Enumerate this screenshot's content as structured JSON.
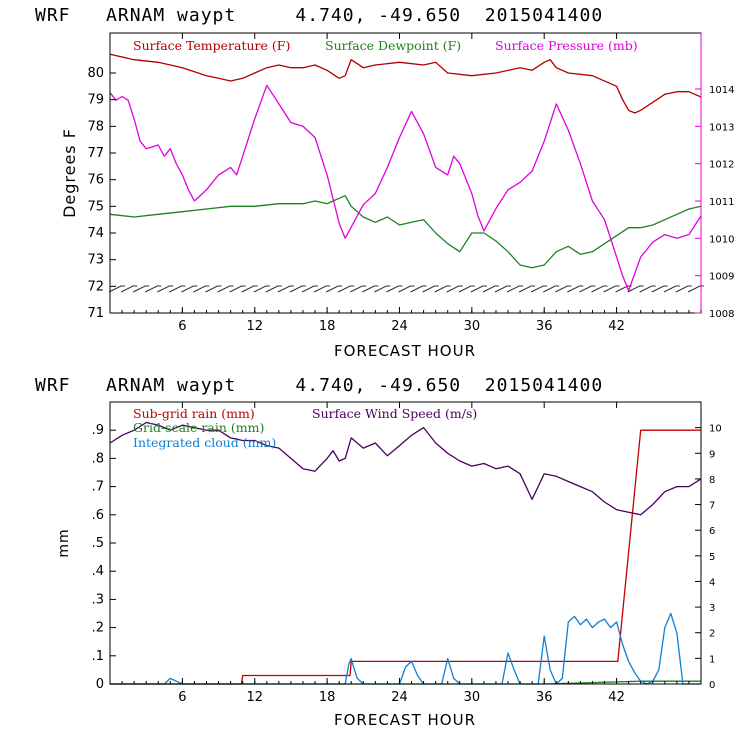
{
  "chart_data": [
    {
      "type": "line",
      "title": "WRF   ARNAM waypt     4.740, -49.650  2015041400",
      "xlabel": "FORECAST HOUR",
      "ylabel": "Degrees F",
      "x_ticks": [
        6,
        12,
        18,
        24,
        30,
        36,
        42
      ],
      "xlim": [
        0,
        49
      ],
      "ylim": [
        71,
        81.5
      ],
      "y_ticks": [
        71,
        72,
        73,
        74,
        75,
        76,
        77,
        78,
        79,
        80
      ],
      "y2lim": [
        1008,
        1015.5
      ],
      "y2_ticks": [
        1008,
        1009,
        1010,
        1011,
        1012,
        1013,
        1014
      ],
      "legend": [
        "Surface Temperature (F)",
        "Surface Dewpoint (F)",
        "Surface Pressure (mb)"
      ],
      "colors": {
        "temperature": "#b00000",
        "dewpoint": "#208020",
        "pressure": "#e000e0",
        "wind_barbs": "#303030"
      },
      "series": [
        {
          "name": "Surface Temperature (F)",
          "axis": "left",
          "x": [
            0,
            2,
            4,
            6,
            8,
            9,
            10,
            11,
            12,
            13,
            14,
            15,
            16,
            17,
            18,
            19,
            19.5,
            20,
            21,
            22,
            24,
            26,
            27,
            28,
            30,
            32,
            34,
            35,
            36,
            36.5,
            37,
            38,
            40,
            42,
            42.5,
            43,
            43.5,
            44,
            45,
            46,
            47,
            48,
            49
          ],
          "y": [
            80.7,
            80.5,
            80.4,
            80.2,
            79.9,
            79.8,
            79.7,
            79.8,
            80.0,
            80.2,
            80.3,
            80.2,
            80.2,
            80.3,
            80.1,
            79.8,
            79.9,
            80.5,
            80.2,
            80.3,
            80.4,
            80.3,
            80.4,
            80.0,
            79.9,
            80.0,
            80.2,
            80.1,
            80.4,
            80.5,
            80.2,
            80.0,
            79.9,
            79.5,
            79.0,
            78.6,
            78.5,
            78.6,
            78.9,
            79.2,
            79.3,
            79.3,
            79.1
          ]
        },
        {
          "name": "Surface Dewpoint (F)",
          "axis": "left",
          "x": [
            0,
            2,
            4,
            6,
            8,
            10,
            12,
            14,
            16,
            17,
            18,
            18.5,
            19,
            19.5,
            20,
            21,
            22,
            23,
            24,
            25,
            26,
            27,
            28,
            29,
            30,
            31,
            32,
            33,
            34,
            35,
            36,
            37,
            38,
            39,
            40,
            41,
            42,
            43,
            44,
            45,
            46,
            47,
            48,
            49
          ],
          "y": [
            74.7,
            74.6,
            74.7,
            74.8,
            74.9,
            75.0,
            75.0,
            75.1,
            75.1,
            75.2,
            75.1,
            75.2,
            75.3,
            75.4,
            75.0,
            74.6,
            74.4,
            74.6,
            74.3,
            74.4,
            74.5,
            74.0,
            73.6,
            73.3,
            74.0,
            74.0,
            73.7,
            73.3,
            72.8,
            72.7,
            72.8,
            73.3,
            73.5,
            73.2,
            73.3,
            73.6,
            73.9,
            74.2,
            74.2,
            74.3,
            74.5,
            74.7,
            74.9,
            75.0
          ]
        },
        {
          "name": "Surface Pressure (mb)",
          "axis": "right",
          "x": [
            0,
            0.5,
            1,
            1.5,
            2,
            2.5,
            3,
            4,
            4.5,
            5,
            5.5,
            6,
            6.5,
            7,
            8,
            9,
            10,
            10.5,
            11,
            12,
            13,
            14,
            15,
            16,
            17,
            18,
            19,
            19.5,
            20,
            21,
            22,
            23,
            24,
            25,
            26,
            27,
            28,
            28.5,
            29,
            30,
            30.5,
            31,
            32,
            33,
            34,
            35,
            36,
            37,
            38,
            39,
            40,
            41,
            42,
            42.5,
            43,
            44,
            45,
            46,
            47,
            48,
            49
          ],
          "y": [
            1013.9,
            1013.7,
            1013.8,
            1013.7,
            1013.2,
            1012.6,
            1012.4,
            1012.5,
            1012.2,
            1012.4,
            1012.0,
            1011.7,
            1011.3,
            1011.0,
            1011.3,
            1011.7,
            1011.9,
            1011.7,
            1012.2,
            1013.2,
            1014.1,
            1013.6,
            1013.1,
            1013.0,
            1012.7,
            1011.7,
            1010.4,
            1010.0,
            1010.3,
            1010.9,
            1011.2,
            1011.9,
            1012.7,
            1013.4,
            1012.8,
            1011.9,
            1011.7,
            1012.2,
            1012.0,
            1011.2,
            1010.6,
            1010.2,
            1010.8,
            1011.3,
            1011.5,
            1011.8,
            1012.6,
            1013.6,
            1012.9,
            1012.0,
            1011.0,
            1010.5,
            1009.5,
            1009.0,
            1008.6,
            1009.5,
            1009.9,
            1010.1,
            1010.0,
            1010.1,
            1010.6
          ]
        }
      ],
      "wind_barb_level": 71.9
    },
    {
      "type": "line",
      "title": "WRF   ARNAM waypt     4.740, -49.650  2015041400",
      "xlabel": "FORECAST HOUR",
      "ylabel": "mm",
      "x_ticks": [
        6,
        12,
        18,
        24,
        30,
        36,
        42
      ],
      "xlim": [
        0,
        49
      ],
      "ylim": [
        0,
        1.0
      ],
      "y_ticks": [
        0,
        0.1,
        0.2,
        0.3,
        0.4,
        0.5,
        0.6,
        0.7,
        0.8,
        0.9
      ],
      "y_tick_labels": [
        "0",
        ".1",
        ".2",
        ".3",
        ".4",
        ".5",
        ".6",
        ".7",
        ".8",
        ".9"
      ],
      "y2lim": [
        0,
        11
      ],
      "y2_ticks": [
        0,
        1,
        2,
        3,
        4,
        5,
        6,
        7,
        8,
        9,
        10
      ],
      "legend": [
        "Sub-grid rain (mm)",
        "Surface Wind Speed (m/s)",
        "Grid-scale rain (mm)",
        "Integrated cloud (mm)"
      ],
      "colors": {
        "subgrid": "#c00000",
        "wind": "#4b0060",
        "gridscale": "#208020",
        "cloud": "#1080d0"
      },
      "series": [
        {
          "name": "Sub-grid rain (mm)",
          "axis": "left",
          "x": [
            0,
            10.9,
            11,
            19.9,
            20,
            42.1,
            44,
            49
          ],
          "y": [
            0,
            0,
            0.03,
            0.03,
            0.08,
            0.08,
            0.9,
            0.9
          ]
        },
        {
          "name": "Grid-scale rain (mm)",
          "axis": "left",
          "x": [
            0,
            36,
            40,
            44,
            49
          ],
          "y": [
            0,
            0,
            0.005,
            0.01,
            0.01
          ]
        },
        {
          "name": "Integrated cloud (mm)",
          "axis": "left",
          "x": [
            0,
            4.5,
            5,
            5.5,
            6,
            19.5,
            19.8,
            20,
            20.2,
            20.5,
            21,
            24,
            24.5,
            25,
            25.5,
            26,
            27.5,
            28,
            28.5,
            29,
            32.5,
            33,
            33.5,
            34,
            35.5,
            36,
            36.5,
            37,
            37.5,
            38,
            38.5,
            39,
            39.5,
            40,
            40.5,
            41,
            41.5,
            42,
            42.5,
            43,
            43.5,
            44,
            44.5,
            45,
            45.5,
            46,
            46.5,
            47,
            47.5,
            48,
            49
          ],
          "y": [
            0,
            0,
            0.02,
            0.01,
            0,
            0,
            0.07,
            0.09,
            0.06,
            0.02,
            0,
            0,
            0.06,
            0.08,
            0.03,
            0,
            0,
            0.09,
            0.02,
            0,
            0,
            0.11,
            0.05,
            0,
            0,
            0.17,
            0.05,
            0,
            0.02,
            0.22,
            0.24,
            0.21,
            0.23,
            0.2,
            0.22,
            0.23,
            0.2,
            0.22,
            0.14,
            0.08,
            0.04,
            0.01,
            0,
            0.01,
            0.05,
            0.2,
            0.25,
            0.18,
            0,
            0,
            0
          ]
        },
        {
          "name": "Surface Wind Speed (m/s)",
          "axis": "right",
          "x": [
            0,
            1,
            2,
            3,
            4,
            5,
            6,
            7,
            8,
            9,
            10,
            11,
            12,
            13,
            14,
            15,
            16,
            17,
            18,
            18.5,
            19,
            19.5,
            20,
            21,
            22,
            23,
            24,
            25,
            26,
            27,
            28,
            29,
            30,
            31,
            32,
            33,
            34,
            35,
            36,
            37,
            38,
            39,
            40,
            41,
            42,
            43,
            44,
            45,
            46,
            47,
            48,
            49
          ],
          "y": [
            9.4,
            9.7,
            9.9,
            10.2,
            10.1,
            9.9,
            10.1,
            10.0,
            9.9,
            9.9,
            9.6,
            9.5,
            9.5,
            9.3,
            9.2,
            8.8,
            8.4,
            8.3,
            8.8,
            9.1,
            8.7,
            8.8,
            9.6,
            9.2,
            9.4,
            8.9,
            9.3,
            9.7,
            10.0,
            9.4,
            9.0,
            8.7,
            8.5,
            8.6,
            8.4,
            8.5,
            8.2,
            7.2,
            8.2,
            8.1,
            7.9,
            7.7,
            7.5,
            7.1,
            6.8,
            6.7,
            6.6,
            7.0,
            7.5,
            7.7,
            7.7,
            8.0
          ]
        }
      ]
    }
  ]
}
